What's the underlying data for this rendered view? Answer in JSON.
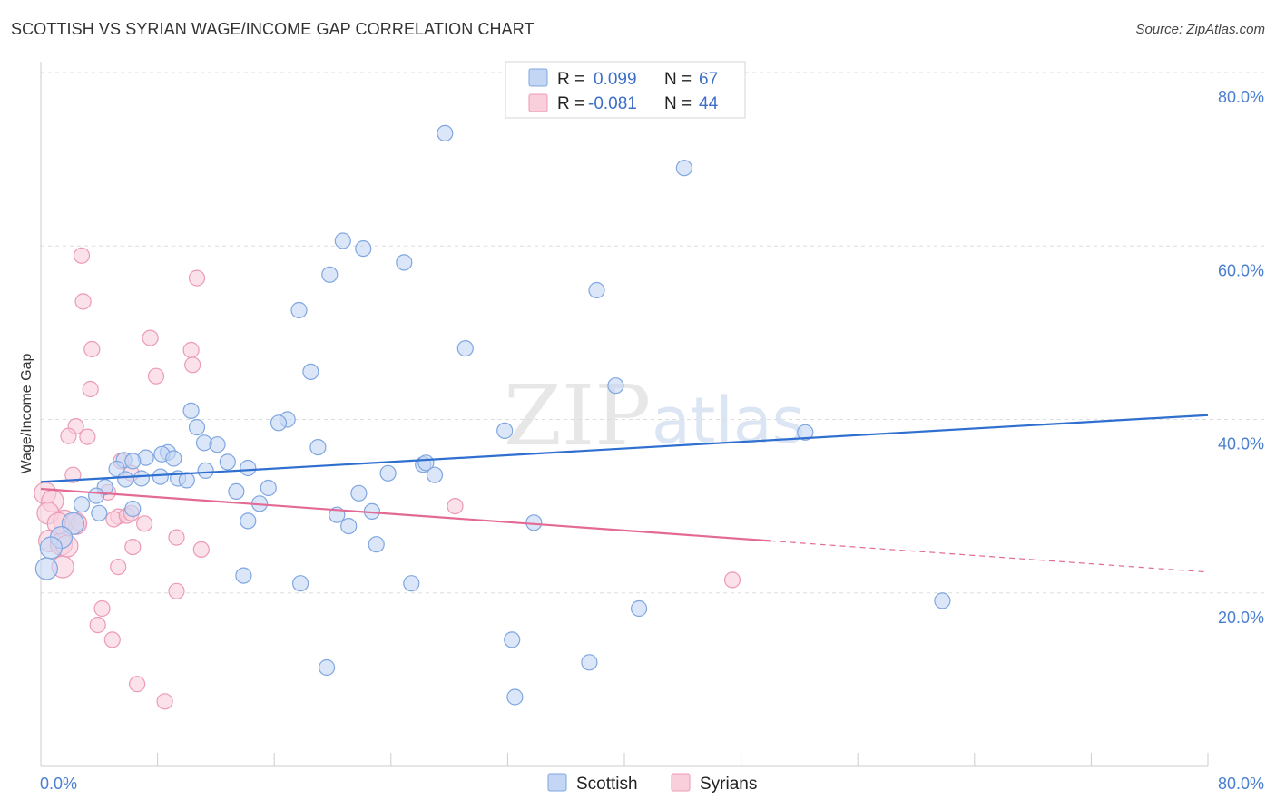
{
  "title": "SCOTTISH VS SYRIAN WAGE/INCOME GAP CORRELATION CHART",
  "source": "Source: ZipAtlas.com",
  "watermark": {
    "zip": "ZIP",
    "atlas": "atlas"
  },
  "colors": {
    "scottish_fill": "#c3d7f5",
    "scottish_stroke": "#7fa6e0",
    "scottish_line": "#2f6fd0",
    "syrians_fill": "#f9cfdc",
    "syrians_stroke": "#ec9ab5",
    "syrians_line": "#e36a94",
    "axis_text": "#4a7fd0",
    "grid": "#dddddd"
  },
  "legend": {
    "rows": [
      {
        "series": "scottish",
        "r_label": "R =",
        "r_value": "0.099",
        "n_label": "N =",
        "n_value": "67"
      },
      {
        "series": "syrians",
        "r_label": "R =",
        "r_value": "-0.081",
        "n_label": "N =",
        "n_value": "44"
      }
    ]
  },
  "chart_data": {
    "type": "scatter",
    "title": "SCOTTISH VS SYRIAN WAGE/INCOME GAP CORRELATION CHART",
    "xlabel": "",
    "ylabel": "Wage/Income Gap",
    "xlim": [
      0,
      80
    ],
    "ylim": [
      0,
      80
    ],
    "x_tick_labels": [
      "0.0%",
      "80.0%"
    ],
    "y_ticks": [
      20,
      40,
      60,
      80
    ],
    "y_tick_labels": [
      "20.0%",
      "40.0%",
      "60.0%",
      "80.0%"
    ],
    "grid": true,
    "legend_position": "bottom-center",
    "series": [
      {
        "name": "Scottish",
        "r": 0.099,
        "n": 67,
        "trend": {
          "x0": 0,
          "y0": 32.8,
          "x1": 80,
          "y1": 40.5,
          "dashed_from": null
        },
        "points": [
          [
            27.7,
            73.0
          ],
          [
            44.1,
            69.0
          ],
          [
            20.7,
            60.6
          ],
          [
            22.1,
            59.7
          ],
          [
            24.9,
            58.1
          ],
          [
            19.8,
            56.7
          ],
          [
            38.1,
            54.9
          ],
          [
            17.7,
            52.6
          ],
          [
            29.1,
            48.2
          ],
          [
            18.5,
            45.5
          ],
          [
            39.4,
            43.9
          ],
          [
            10.3,
            41.0
          ],
          [
            16.9,
            40.0
          ],
          [
            16.3,
            39.6
          ],
          [
            31.8,
            38.7
          ],
          [
            52.4,
            38.5
          ],
          [
            10.7,
            39.1
          ],
          [
            11.2,
            37.3
          ],
          [
            12.1,
            37.1
          ],
          [
            19.0,
            36.8
          ],
          [
            8.7,
            36.2
          ],
          [
            8.3,
            36.0
          ],
          [
            9.1,
            35.5
          ],
          [
            7.2,
            35.6
          ],
          [
            5.7,
            35.3
          ],
          [
            6.3,
            35.2
          ],
          [
            5.2,
            34.3
          ],
          [
            12.8,
            35.1
          ],
          [
            14.2,
            34.4
          ],
          [
            11.3,
            34.1
          ],
          [
            26.2,
            34.8
          ],
          [
            26.4,
            35.0
          ],
          [
            23.8,
            33.8
          ],
          [
            27.0,
            33.6
          ],
          [
            4.4,
            32.2
          ],
          [
            8.2,
            33.4
          ],
          [
            9.4,
            33.2
          ],
          [
            5.8,
            33.1
          ],
          [
            10.0,
            33.0
          ],
          [
            6.9,
            33.2
          ],
          [
            15.6,
            32.1
          ],
          [
            13.4,
            31.7
          ],
          [
            21.8,
            31.5
          ],
          [
            3.8,
            31.2
          ],
          [
            15.0,
            30.3
          ],
          [
            2.8,
            30.2
          ],
          [
            6.3,
            29.7
          ],
          [
            22.7,
            29.4
          ],
          [
            20.3,
            29.0
          ],
          [
            4.0,
            29.2
          ],
          [
            14.2,
            28.3
          ],
          [
            21.1,
            27.7
          ],
          [
            33.8,
            28.1
          ],
          [
            2.2,
            28.0
          ],
          [
            23.0,
            25.6
          ],
          [
            1.4,
            26.4
          ],
          [
            0.7,
            25.2
          ],
          [
            0.4,
            22.8
          ],
          [
            13.9,
            22.0
          ],
          [
            17.8,
            21.1
          ],
          [
            25.4,
            21.1
          ],
          [
            61.8,
            19.1
          ],
          [
            41.0,
            18.2
          ],
          [
            32.3,
            14.6
          ],
          [
            37.6,
            12.0
          ],
          [
            19.6,
            11.4
          ],
          [
            32.5,
            8.0
          ]
        ]
      },
      {
        "name": "Syrians",
        "r": -0.081,
        "n": 44,
        "trend": {
          "x0": 0,
          "y0": 32.0,
          "x1": 50,
          "y1": 26.0,
          "x2": 80,
          "y2": 22.4
        },
        "points": [
          [
            2.8,
            58.9
          ],
          [
            10.7,
            56.3
          ],
          [
            2.9,
            53.6
          ],
          [
            7.5,
            49.4
          ],
          [
            3.5,
            48.1
          ],
          [
            10.3,
            48.0
          ],
          [
            10.4,
            46.3
          ],
          [
            7.9,
            45.0
          ],
          [
            3.4,
            43.5
          ],
          [
            2.4,
            39.2
          ],
          [
            1.9,
            38.1
          ],
          [
            3.2,
            38.0
          ],
          [
            5.5,
            35.2
          ],
          [
            2.2,
            33.6
          ],
          [
            6.2,
            33.8
          ],
          [
            4.6,
            31.6
          ],
          [
            0.3,
            31.5
          ],
          [
            0.8,
            30.6
          ],
          [
            28.4,
            30.0
          ],
          [
            0.5,
            29.2
          ],
          [
            5.3,
            28.8
          ],
          [
            5.0,
            28.5
          ],
          [
            5.9,
            28.9
          ],
          [
            6.2,
            29.2
          ],
          [
            1.6,
            28.3
          ],
          [
            2.6,
            28.1
          ],
          [
            7.1,
            28.0
          ],
          [
            1.2,
            28.0
          ],
          [
            2.4,
            28.0
          ],
          [
            9.3,
            26.4
          ],
          [
            0.6,
            26.0
          ],
          [
            1.4,
            25.6
          ],
          [
            6.3,
            25.3
          ],
          [
            1.8,
            25.4
          ],
          [
            11.0,
            25.0
          ],
          [
            1.5,
            23.0
          ],
          [
            5.3,
            23.0
          ],
          [
            47.4,
            21.5
          ],
          [
            9.3,
            20.2
          ],
          [
            4.2,
            18.2
          ],
          [
            3.9,
            16.3
          ],
          [
            4.9,
            14.6
          ],
          [
            6.6,
            9.5
          ],
          [
            8.5,
            7.5
          ]
        ]
      }
    ]
  },
  "bottom_legend": [
    {
      "series": "scottish",
      "label": "Scottish"
    },
    {
      "series": "syrians",
      "label": "Syrians"
    }
  ]
}
